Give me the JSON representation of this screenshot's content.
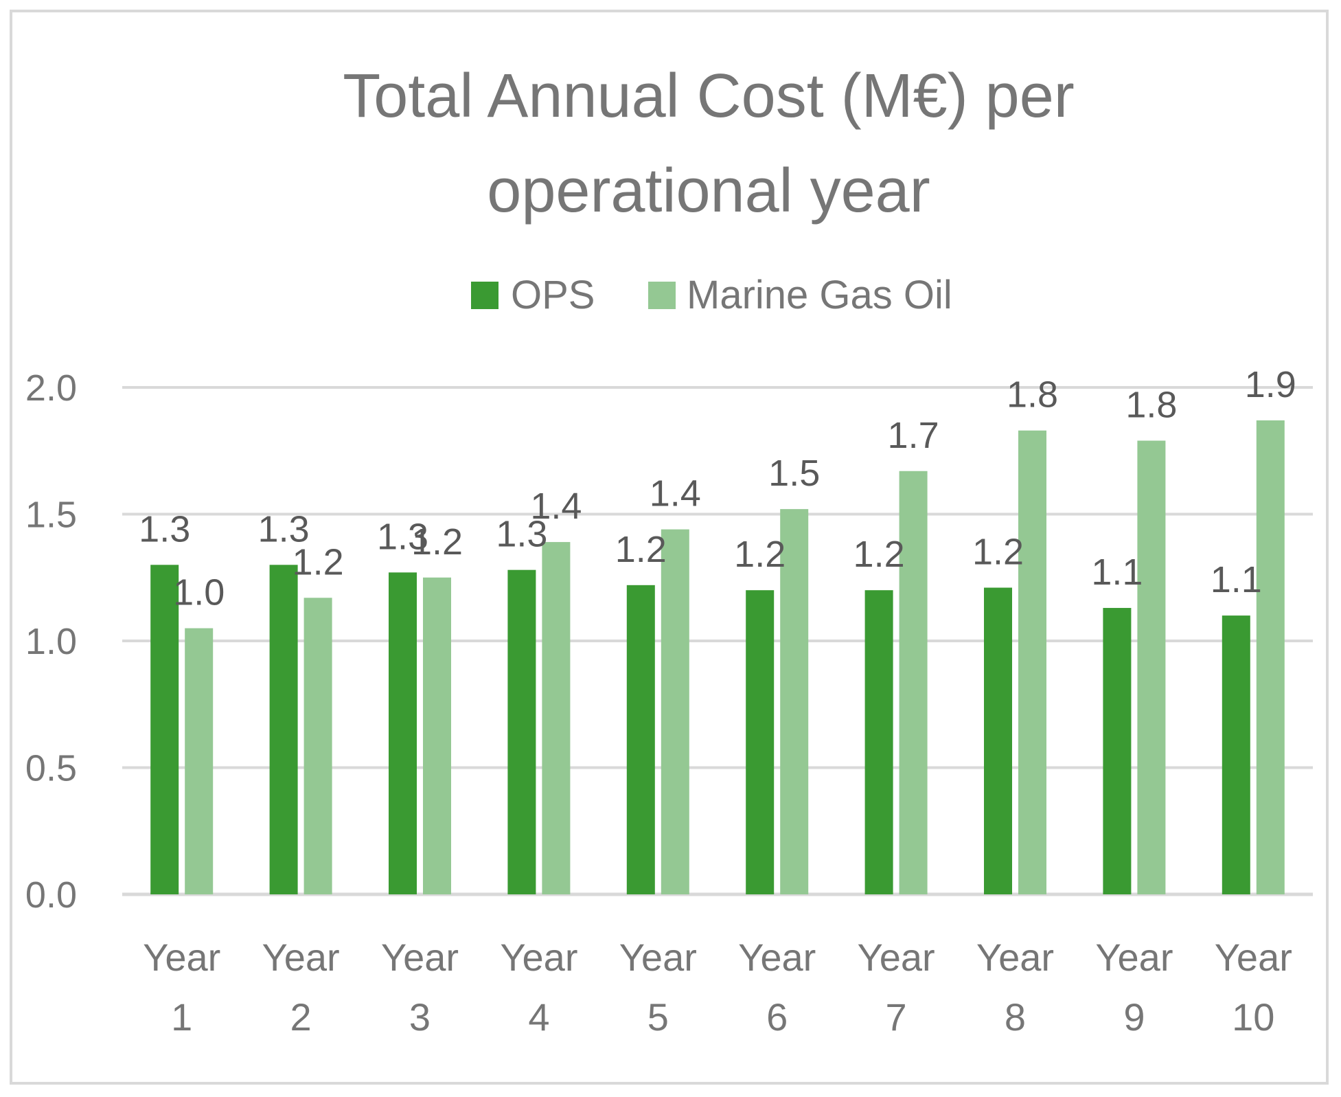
{
  "chart_data": {
    "type": "bar",
    "title_lines": [
      "Total Annual Cost (M€) per",
      "operational year"
    ],
    "categories": [
      [
        "Year",
        "1"
      ],
      [
        "Year",
        "2"
      ],
      [
        "Year",
        "3"
      ],
      [
        "Year",
        "4"
      ],
      [
        "Year",
        "5"
      ],
      [
        "Year",
        "6"
      ],
      [
        "Year",
        "7"
      ],
      [
        "Year",
        "8"
      ],
      [
        "Year",
        "9"
      ],
      [
        "Year",
        "10"
      ]
    ],
    "series": [
      {
        "name": "OPS",
        "color": "#3a9a32",
        "values": [
          1.3,
          1.3,
          1.27,
          1.28,
          1.22,
          1.2,
          1.2,
          1.21,
          1.13,
          1.1
        ],
        "labels": [
          "1.3",
          "1.3",
          "1.3",
          "1.3",
          "1.2",
          "1.2",
          "1.2",
          "1.2",
          "1.1",
          "1.1"
        ]
      },
      {
        "name": "Marine Gas Oil",
        "color": "#94c893",
        "values": [
          1.05,
          1.17,
          1.25,
          1.39,
          1.44,
          1.52,
          1.67,
          1.83,
          1.79,
          1.87
        ],
        "labels": [
          "1.0",
          "1.2",
          "1.2",
          "1.4",
          "1.4",
          "1.5",
          "1.7",
          "1.8",
          "1.8",
          "1.9"
        ]
      }
    ],
    "ylim": [
      0,
      2.0
    ],
    "yticks": [
      "0.0",
      "0.5",
      "1.0",
      "1.5",
      "2.0"
    ],
    "xlabel": "",
    "ylabel": "",
    "grid": true,
    "legend_position": "top-center"
  }
}
